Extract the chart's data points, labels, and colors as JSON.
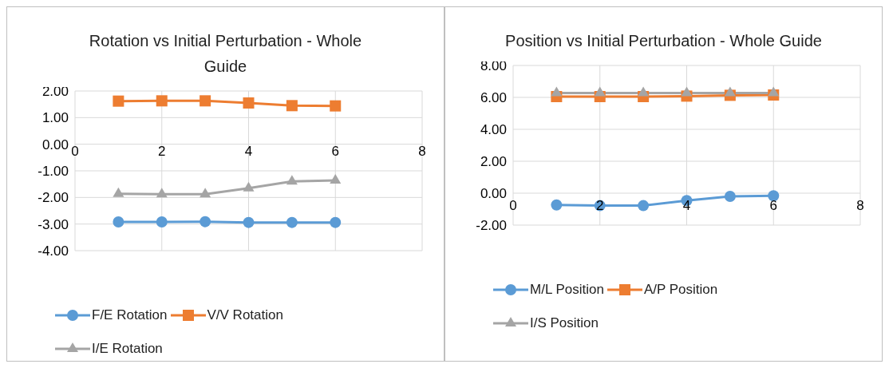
{
  "chart_data": [
    {
      "type": "line",
      "title": "Rotation vs Initial Perturbation - Whole Guide",
      "x": [
        1,
        2,
        3,
        4,
        5,
        6
      ],
      "xlim": [
        0,
        8
      ],
      "xticks": [
        0,
        2,
        4,
        6,
        8
      ],
      "ylim": [
        -4,
        2
      ],
      "yticks": [
        {
          "value": -4,
          "label": "-4.00"
        },
        {
          "value": -3,
          "label": "-3.00"
        },
        {
          "value": -2,
          "label": "-2.00"
        },
        {
          "value": -1,
          "label": "-1.00"
        },
        {
          "value": 0,
          "label": "0.00"
        },
        {
          "value": 1,
          "label": "1.00"
        },
        {
          "value": 2,
          "label": "2.00"
        }
      ],
      "grid": true,
      "legend": "bottom",
      "series": [
        {
          "name": "F/E Rotation",
          "color": "#5b9bd5",
          "marker": "circle",
          "values": [
            -2.92,
            -2.92,
            -2.91,
            -2.94,
            -2.94,
            -2.94
          ]
        },
        {
          "name": "V/V Rotation",
          "color": "#ed7d31",
          "marker": "square",
          "values": [
            1.62,
            1.63,
            1.63,
            1.55,
            1.45,
            1.44
          ]
        },
        {
          "name": "I/E Rotation",
          "color": "#a5a5a5",
          "marker": "triangle",
          "values": [
            -1.86,
            -1.88,
            -1.88,
            -1.65,
            -1.4,
            -1.36
          ]
        }
      ]
    },
    {
      "type": "line",
      "title": "Position vs Initial Perturbation - Whole Guide",
      "x": [
        1,
        2,
        3,
        4,
        5,
        6
      ],
      "xlim": [
        0,
        8
      ],
      "xticks": [
        0,
        2,
        4,
        6,
        8
      ],
      "ylim": [
        -2,
        8
      ],
      "yticks": [
        {
          "value": -2,
          "label": "-2.00"
        },
        {
          "value": 0,
          "label": "0.00"
        },
        {
          "value": 2,
          "label": "2.00"
        },
        {
          "value": 4,
          "label": "4.00"
        },
        {
          "value": 6,
          "label": "6.00"
        },
        {
          "value": 8,
          "label": "8.00"
        }
      ],
      "grid": true,
      "legend": "bottom",
      "series": [
        {
          "name": "M/L Position",
          "color": "#5b9bd5",
          "marker": "circle",
          "values": [
            -0.74,
            -0.78,
            -0.78,
            -0.46,
            -0.2,
            -0.16
          ]
        },
        {
          "name": "A/P Position",
          "color": "#ed7d31",
          "marker": "square",
          "values": [
            6.05,
            6.05,
            6.05,
            6.08,
            6.13,
            6.15
          ]
        },
        {
          "name": "I/S Position",
          "color": "#a5a5a5",
          "marker": "triangle",
          "values": [
            6.27,
            6.27,
            6.27,
            6.27,
            6.27,
            6.27
          ]
        }
      ]
    }
  ]
}
